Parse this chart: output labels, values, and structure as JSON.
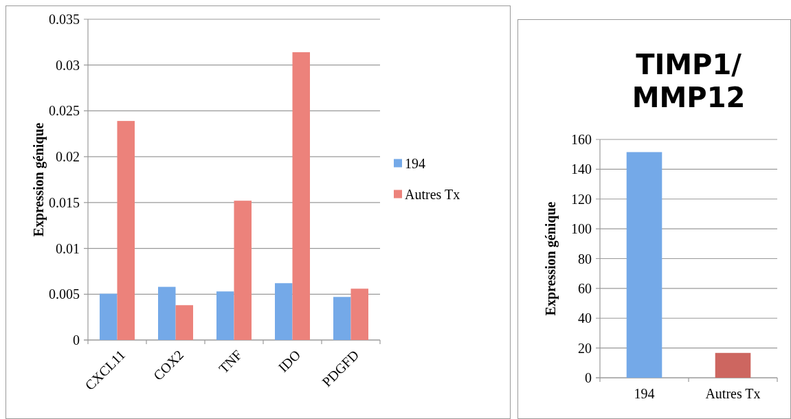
{
  "chart_data": [
    {
      "type": "bar",
      "ylabel": "Expression génique",
      "categories": [
        "CXCL11",
        "COX2",
        "TNF",
        "IDO",
        "PDGFD"
      ],
      "series": [
        {
          "name": "194",
          "color": "#74a9e8",
          "values": [
            0.00505,
            0.0058,
            0.0053,
            0.0062,
            0.0047
          ]
        },
        {
          "name": "Autres Tx",
          "color": "#ec827b",
          "values": [
            0.0239,
            0.0038,
            0.0152,
            0.0314,
            0.0056
          ]
        }
      ],
      "ylim": [
        0,
        0.035
      ],
      "yticks": [
        0,
        0.005,
        0.01,
        0.015,
        0.02,
        0.025,
        0.03,
        0.035
      ],
      "grid": "y",
      "legend": "right"
    },
    {
      "type": "bar",
      "title": "TIMP1/ MMP12",
      "ylabel": "Expression génique",
      "categories": [
        "194",
        "Autres Tx"
      ],
      "values": [
        151.5,
        16.7
      ],
      "colors": [
        "#74a9e8",
        "#cd6660"
      ],
      "ylim": [
        0,
        160
      ],
      "yticks": [
        0,
        20,
        40,
        60,
        80,
        100,
        120,
        140,
        160
      ],
      "grid": "y"
    }
  ]
}
